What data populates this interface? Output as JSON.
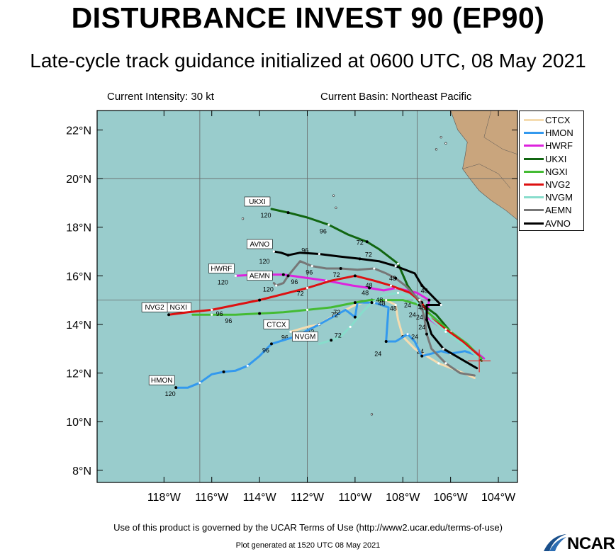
{
  "header": {
    "title": "DISTURBANCE INVEST 90 (EP90)",
    "subtitle": "Late-cycle track guidance initialized at 0600 UTC, 08 May 2021",
    "current_intensity": "Current Intensity: 30 kt",
    "current_basin": "Current Basin: Northeast Pacific"
  },
  "footer": {
    "terms": "Use of this product is governed by the UCAR Terms of Use (http://www2.ucar.edu/terms-of-use)",
    "generated": "Plot generated at 1520 UTC   08 May 2021",
    "logo_text": "NCAR"
  },
  "map": {
    "lon_range": [
      -120.8,
      -103.2
    ],
    "lat_range": [
      7.5,
      22.8
    ],
    "ocean_color": "#99cccc",
    "land_color": "#c9a57d",
    "x_ticks": [
      {
        "value": -118,
        "label": "118°W"
      },
      {
        "value": -116,
        "label": "116°W"
      },
      {
        "value": -114,
        "label": "114°W"
      },
      {
        "value": -112,
        "label": "112°W"
      },
      {
        "value": -110,
        "label": "110°W"
      },
      {
        "value": -108,
        "label": "108°W"
      },
      {
        "value": -106,
        "label": "106°W"
      },
      {
        "value": -104,
        "label": "104°W"
      }
    ],
    "y_ticks": [
      {
        "value": 8,
        "label": "8°N"
      },
      {
        "value": 10,
        "label": "10°N"
      },
      {
        "value": 12,
        "label": "12°N"
      },
      {
        "value": 14,
        "label": "14°N"
      },
      {
        "value": 16,
        "label": "16°N"
      },
      {
        "value": 18,
        "label": "18°N"
      },
      {
        "value": 20,
        "label": "20°N"
      },
      {
        "value": 22,
        "label": "22°N"
      }
    ],
    "grid_lon": [
      -116.5,
      -112,
      -107.4
    ],
    "grid_lat": [
      15,
      20
    ],
    "initial_position": {
      "lon": -104.8,
      "lat": 12.5
    }
  },
  "legend": [
    {
      "name": "CTCX",
      "color": "#f5dcb0"
    },
    {
      "name": "HMON",
      "color": "#3399ee"
    },
    {
      "name": "HWRF",
      "color": "#dd22dd"
    },
    {
      "name": "UKXI",
      "color": "#116611"
    },
    {
      "name": "NGXI",
      "color": "#44bb33"
    },
    {
      "name": "NVG2",
      "color": "#dd1111"
    },
    {
      "name": "NVGM",
      "color": "#88ddcc"
    },
    {
      "name": "AEMN",
      "color": "#777777"
    },
    {
      "name": "AVNO",
      "color": "#000000"
    }
  ],
  "tracks": [
    {
      "name": "CTCX",
      "color": "#f5dcb0",
      "label_pos": "left",
      "points": [
        [
          -105,
          11.8
        ],
        [
          -105.7,
          12.1
        ],
        [
          -106.5,
          12.4
        ],
        [
          -107.5,
          13.0
        ],
        [
          -108,
          13.5
        ],
        [
          -108.2,
          14.2
        ],
        [
          -108.3,
          14.8
        ],
        [
          -108.7,
          15.0
        ],
        [
          -109.3,
          15.0
        ],
        [
          -110,
          14.8
        ],
        [
          -110.4,
          14.6
        ],
        [
          -111.0,
          14.3
        ],
        [
          -111.5,
          14.0
        ],
        [
          -112.0,
          13.9
        ],
        [
          -112.7,
          13.7
        ]
      ],
      "hour_labels": [
        {
          "text": "24",
          "lon": -107.5,
          "lat": 13.1,
          "dx": 8,
          "dy": 10
        },
        {
          "text": "48",
          "lon": -108.4,
          "lat": 14.8,
          "dx": 0,
          "dy": 8
        },
        {
          "text": "72",
          "lon": -111.8,
          "lat": 13.9,
          "dx": -2,
          "dy": 10
        },
        {
          "text": "96",
          "lon": -112.7,
          "lat": 13.7,
          "dx": -8,
          "dy": 11
        }
      ]
    },
    {
      "name": "HMON",
      "color": "#3399ee",
      "label_pos": "left",
      "points": [
        [
          -104.8,
          12.7
        ],
        [
          -105.4,
          12.9
        ],
        [
          -106.0,
          12.8
        ],
        [
          -106.4,
          12.9
        ],
        [
          -107.2,
          12.7
        ],
        [
          -107.5,
          13.3
        ],
        [
          -107.8,
          13.6
        ],
        [
          -108.3,
          13.3
        ],
        [
          -108.7,
          13.3
        ],
        [
          -108.6,
          14.7
        ],
        [
          -109.2,
          14.9
        ],
        [
          -109.9,
          14.9
        ],
        [
          -110.0,
          14.3
        ],
        [
          -110.4,
          14.6
        ],
        [
          -111.5,
          14.0
        ],
        [
          -112.5,
          13.5
        ],
        [
          -113.5,
          13.2
        ],
        [
          -114.0,
          12.7
        ],
        [
          -114.5,
          12.3
        ],
        [
          -115.0,
          12.1
        ],
        [
          -115.5,
          12.05
        ],
        [
          -116.0,
          11.95
        ],
        [
          -116.5,
          11.6
        ],
        [
          -117.0,
          11.4
        ],
        [
          -117.5,
          11.4
        ]
      ],
      "hour_labels": [
        {
          "text": "24",
          "lon": -108.8,
          "lat": 13.0,
          "dx": -8,
          "dy": 10
        },
        {
          "text": "72",
          "lon": -110.5,
          "lat": 14.6,
          "dx": -12,
          "dy": 10
        },
        {
          "text": "96",
          "lon": -113.5,
          "lat": 13.2,
          "dx": -8,
          "dy": 12
        },
        {
          "text": "120",
          "lon": -117.5,
          "lat": 11.4,
          "dx": -8,
          "dy": 12
        }
      ]
    },
    {
      "name": "HWRF",
      "color": "#dd22dd",
      "label_pos": "left",
      "points": [
        [
          -104.6,
          12.6
        ],
        [
          -105.5,
          13.3
        ],
        [
          -106.3,
          13.8
        ],
        [
          -107.0,
          14.3
        ],
        [
          -106.9,
          15.0
        ],
        [
          -107.4,
          15.3
        ],
        [
          -108.3,
          15.5
        ],
        [
          -108.8,
          15.4
        ],
        [
          -109.4,
          15.5
        ],
        [
          -110.1,
          15.6
        ],
        [
          -111.2,
          15.8
        ],
        [
          -112.3,
          15.95
        ],
        [
          -113.0,
          16.05
        ],
        [
          -114.0,
          16.05
        ],
        [
          -115.0,
          16.0
        ]
      ],
      "hour_labels": [
        {
          "text": "48",
          "lon": -109.4,
          "lat": 15.5,
          "dx": -6,
          "dy": 10
        },
        {
          "text": "96",
          "lon": -112.3,
          "lat": 15.95,
          "dx": -8,
          "dy": 10
        },
        {
          "text": "120",
          "lon": -115.0,
          "lat": 16.0,
          "dx": -18,
          "dy": 12
        }
      ]
    },
    {
      "name": "UKXI",
      "color": "#116611",
      "label_pos": "left",
      "points": [
        [
          -104.7,
          12.5
        ],
        [
          -105.2,
          13.0
        ],
        [
          -106.0,
          13.7
        ],
        [
          -106.6,
          14.4
        ],
        [
          -107.3,
          14.9
        ],
        [
          -107.8,
          15.6
        ],
        [
          -108.2,
          16.5
        ],
        [
          -109.0,
          17.1
        ],
        [
          -109.5,
          17.4
        ],
        [
          -110.3,
          17.7
        ],
        [
          -111.1,
          18.1
        ],
        [
          -112.0,
          18.4
        ],
        [
          -112.8,
          18.6
        ],
        [
          -113.5,
          18.75
        ]
      ],
      "hour_labels": [
        {
          "text": "72",
          "lon": -109.5,
          "lat": 17.4,
          "dx": -10,
          "dy": 4
        },
        {
          "text": "96",
          "lon": -111.1,
          "lat": 18.1,
          "dx": -8,
          "dy": 12
        },
        {
          "text": "120",
          "lon": -113.5,
          "lat": 18.75,
          "dx": -8,
          "dy": 12
        }
      ]
    },
    {
      "name": "NGXI",
      "color": "#44bb33",
      "label_pos": "left",
      "points": [
        [
          -104.7,
          12.6
        ],
        [
          -105.3,
          13.2
        ],
        [
          -106.0,
          13.7
        ],
        [
          -106.6,
          14.2
        ],
        [
          -107.3,
          14.8
        ],
        [
          -108.0,
          15.0
        ],
        [
          -108.7,
          15.0
        ],
        [
          -109.4,
          15.0
        ],
        [
          -110.0,
          14.9
        ],
        [
          -111.0,
          14.7
        ],
        [
          -112.0,
          14.6
        ],
        [
          -113.0,
          14.5
        ],
        [
          -114.0,
          14.45
        ],
        [
          -115.0,
          14.4
        ],
        [
          -116.0,
          14.4
        ],
        [
          -116.8,
          14.4
        ]
      ],
      "hour_labels": [
        {
          "text": "48",
          "lon": -108.7,
          "lat": 15.0,
          "dx": -6,
          "dy": 8
        },
        {
          "text": "72",
          "lon": -110.7,
          "lat": 14.7,
          "dx": -2,
          "dy": 10
        },
        {
          "text": "96",
          "lon": -115.0,
          "lat": 14.4,
          "dx": -10,
          "dy": 12
        }
      ]
    },
    {
      "name": "NVG2",
      "color": "#dd1111",
      "label_pos": "left",
      "points": [
        [
          -104.8,
          12.7
        ],
        [
          -105.5,
          13.3
        ],
        [
          -106.2,
          13.8
        ],
        [
          -106.9,
          14.3
        ],
        [
          -107.2,
          14.9
        ],
        [
          -107.7,
          15.3
        ],
        [
          -108.5,
          15.6
        ],
        [
          -109.2,
          15.8
        ],
        [
          -110.0,
          16.0
        ],
        [
          -111.0,
          15.8
        ],
        [
          -112.0,
          15.5
        ],
        [
          -113.0,
          15.25
        ],
        [
          -114.0,
          15.0
        ],
        [
          -115.0,
          14.8
        ],
        [
          -116.0,
          14.6
        ],
        [
          -117.0,
          14.5
        ],
        [
          -117.8,
          14.4
        ]
      ],
      "hour_labels": [
        {
          "text": "48",
          "lon": -109.3,
          "lat": 15.8,
          "dx": -4,
          "dy": 10
        },
        {
          "text": "72",
          "lon": -112.0,
          "lat": 15.5,
          "dx": -10,
          "dy": 11
        },
        {
          "text": "96",
          "lon": -115.5,
          "lat": 14.7,
          "dx": -6,
          "dy": 12
        }
      ]
    },
    {
      "name": "NVGM",
      "color": "#88ddcc",
      "label_pos": "left",
      "points": [
        [
          -104.8,
          12.6
        ],
        [
          -105.5,
          13.2
        ],
        [
          -106.2,
          13.7
        ],
        [
          -106.8,
          14.2
        ],
        [
          -107.3,
          14.8
        ],
        [
          -107.6,
          15.1
        ],
        [
          -108.2,
          15.3
        ],
        [
          -108.8,
          15.2
        ],
        [
          -109.3,
          14.9
        ],
        [
          -109.7,
          14.5
        ],
        [
          -110.2,
          13.9
        ],
        [
          -110.6,
          13.5
        ],
        [
          -111.0,
          13.35
        ],
        [
          -111.5,
          13.2
        ]
      ],
      "hour_labels": [
        {
          "text": "48",
          "lon": -108.8,
          "lat": 15.15,
          "dx": -6,
          "dy": 8
        },
        {
          "text": "72",
          "lon": -110.3,
          "lat": 13.7,
          "dx": -14,
          "dy": 8
        }
      ]
    },
    {
      "name": "AEMN",
      "color": "#777777",
      "label_pos": "left",
      "points": [
        [
          -105,
          11.9
        ],
        [
          -105.6,
          12.0
        ],
        [
          -106.2,
          12.4
        ],
        [
          -106.8,
          13.0
        ],
        [
          -107.0,
          13.6
        ],
        [
          -107.1,
          14.3
        ],
        [
          -107.3,
          15.0
        ],
        [
          -107.9,
          15.6
        ],
        [
          -108.3,
          15.9
        ],
        [
          -108.7,
          16.1
        ],
        [
          -109.2,
          16.3
        ],
        [
          -109.9,
          16.25
        ],
        [
          -110.6,
          16.3
        ],
        [
          -111.2,
          16.3
        ],
        [
          -111.8,
          16.4
        ],
        [
          -112.3,
          16.6
        ],
        [
          -112.8,
          16.0
        ],
        [
          -113.0,
          15.7
        ],
        [
          -113.3,
          15.6
        ],
        [
          -113.4,
          15.7
        ]
      ],
      "hour_labels": [
        {
          "text": "48",
          "lon": -108.6,
          "lat": 16.1,
          "dx": 6,
          "dy": 10
        },
        {
          "text": "72",
          "lon": -110.6,
          "lat": 16.3,
          "dx": -6,
          "dy": 12
        },
        {
          "text": "96",
          "lon": -111.8,
          "lat": 16.4,
          "dx": -4,
          "dy": 12
        },
        {
          "text": "120",
          "lon": -113.4,
          "lat": 15.7,
          "dx": -8,
          "dy": 12
        }
      ]
    },
    {
      "name": "AVNO",
      "color": "#000000",
      "label_pos": "left",
      "points": [
        [
          -104.9,
          12.2
        ],
        [
          -105.6,
          12.6
        ],
        [
          -106.3,
          13.0
        ],
        [
          -106.8,
          13.6
        ],
        [
          -107.0,
          14.2
        ],
        [
          -107.0,
          14.8
        ],
        [
          -106.4,
          14.8
        ],
        [
          -106.8,
          15.2
        ],
        [
          -107.2,
          15.6
        ],
        [
          -107.5,
          16.1
        ],
        [
          -108.3,
          16.4
        ],
        [
          -109.0,
          16.6
        ],
        [
          -109.8,
          16.7
        ],
        [
          -110.7,
          16.8
        ],
        [
          -111.5,
          16.9
        ],
        [
          -112.3,
          16.95
        ],
        [
          -112.8,
          16.85
        ],
        [
          -113.1,
          16.95
        ],
        [
          -113.4,
          17.0
        ]
      ],
      "hour_labels": [
        {
          "text": "72",
          "lon": -109.2,
          "lat": 16.6,
          "dx": -8,
          "dy": -6
        },
        {
          "text": "96",
          "lon": -111.8,
          "lat": 16.9,
          "dx": -10,
          "dy": -2
        },
        {
          "text": "120",
          "lon": -113.5,
          "lat": 16.85,
          "dx": -10,
          "dy": 12
        }
      ]
    }
  ],
  "short_labels": [
    {
      "text": "24",
      "lon": -107.8,
      "lat": 14.7
    },
    {
      "text": "24",
      "lon": -107.6,
      "lat": 14.3
    },
    {
      "text": "24",
      "lon": -107.3,
      "lat": 14.2
    },
    {
      "text": "48",
      "lon": -107.2,
      "lat": 14.6
    },
    {
      "text": "48",
      "lon": -107.1,
      "lat": 15.3
    },
    {
      "text": "24",
      "lon": -107.5,
      "lat": 13.4
    },
    {
      "text": "24",
      "lon": -107.2,
      "lat": 13.8
    }
  ]
}
